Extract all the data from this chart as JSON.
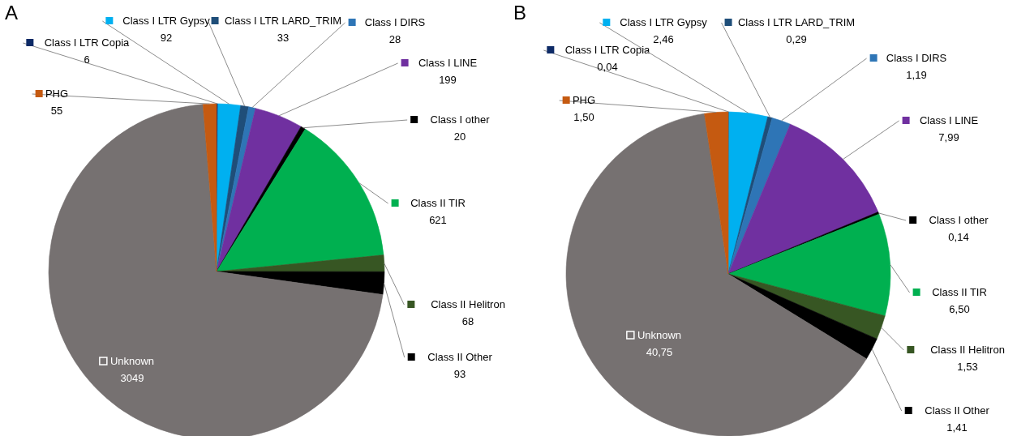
{
  "chart_data": [
    {
      "type": "pie",
      "title": "A",
      "categories": [
        "Class I LTR Copia",
        "Class I LTR Gypsy",
        "Class I LTR LARD_TRIM",
        "Class I DIRS",
        "Class I LINE",
        "Class I other",
        "Class II TIR",
        "Class II Helitron",
        "Class II Other",
        "Unknown",
        "PHG"
      ],
      "values": [
        6,
        92,
        33,
        28,
        199,
        20,
        621,
        68,
        93,
        3049,
        55
      ],
      "colors": [
        "#0d2a66",
        "#00b0f0",
        "#1f4e79",
        "#2e75b6",
        "#7030a0",
        "#000000",
        "#00b050",
        "#375623",
        "#000000",
        "#767171",
        "#c55a11"
      ],
      "data_labels": true,
      "legend": "right"
    },
    {
      "type": "pie",
      "title": "B",
      "categories": [
        "Class I LTR Copia",
        "Class I LTR Gypsy",
        "Class I LTR LARD_TRIM",
        "Class I DIRS",
        "Class I LINE",
        "Class I other",
        "Class II TIR",
        "Class II Helitron",
        "Class II Other",
        "Unknown",
        "PHG"
      ],
      "values": [
        0.04,
        2.46,
        0.29,
        1.19,
        7.99,
        0.14,
        6.5,
        1.53,
        1.41,
        40.75,
        1.5
      ],
      "value_labels": [
        "0,04",
        "2,46",
        "0,29",
        "1,19",
        "7,99",
        "0,14",
        "6,50",
        "1,53",
        "1,41",
        "40,75",
        "1,50"
      ],
      "legend": "right",
      "colors": [
        "#0d2a66",
        "#00b0f0",
        "#1f4e79",
        "#2e75b6",
        "#7030a0",
        "#000000",
        "#00b050",
        "#375623",
        "#000000",
        "#767171",
        "#c55a11"
      ]
    }
  ]
}
